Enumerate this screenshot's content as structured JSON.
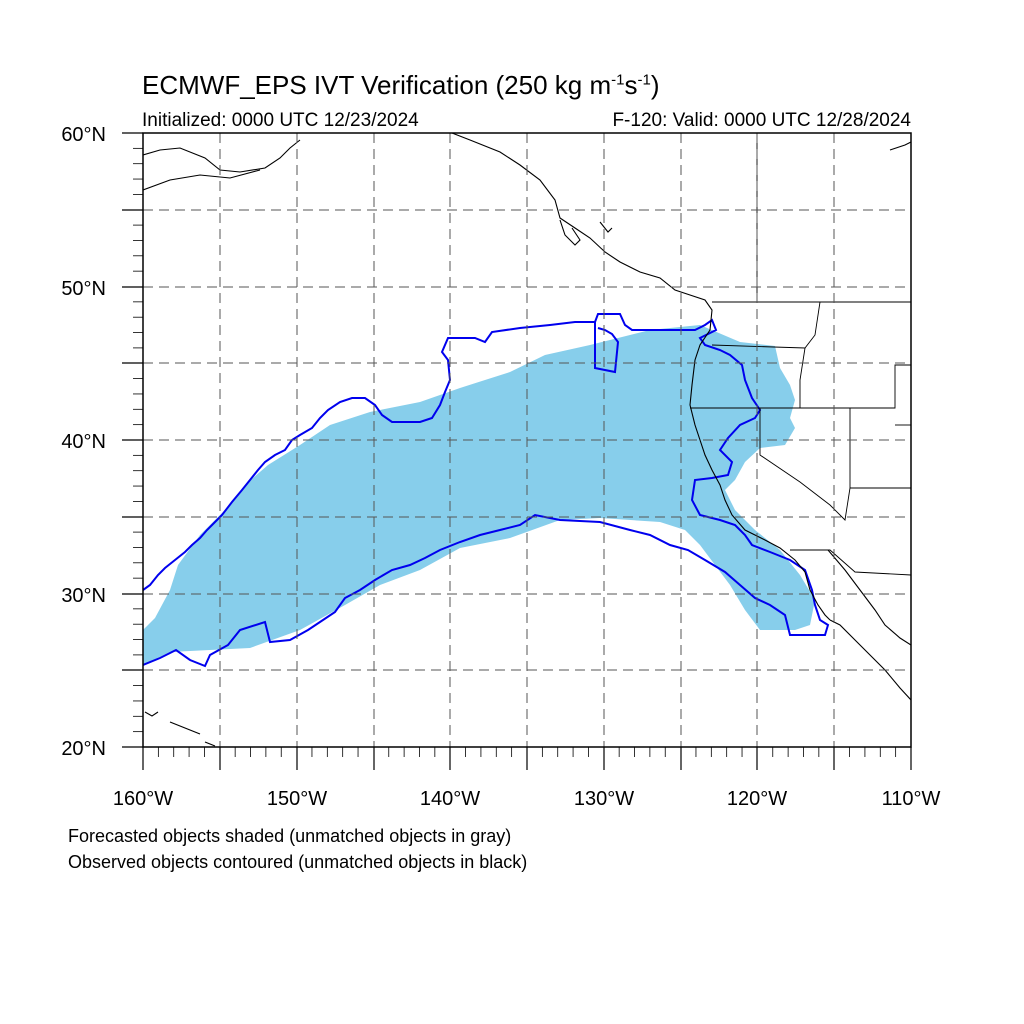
{
  "header": {
    "title": "ECMWF_EPS IVT Verification (250 kg m",
    "title_exp1": "-1",
    "title_mid": "s",
    "title_exp2": "-1",
    "title_end": ")",
    "initialized": "Initialized: 0000 UTC 12/23/2024",
    "valid": "F-120: Valid: 0000 UTC 12/28/2024"
  },
  "axes": {
    "lat_labels": [
      "60°N",
      "50°N",
      "40°N",
      "30°N",
      "20°N"
    ],
    "lon_labels": [
      "160°W",
      "150°W",
      "140°W",
      "130°W",
      "120°W",
      "110°W"
    ],
    "lat_range": [
      20,
      60
    ],
    "lon_range": [
      -160,
      -110
    ],
    "grid": "dashed, every 5 degrees"
  },
  "legend": {
    "line1": "Forecasted objects shaded (unmatched objects in gray)",
    "line2": "Observed objects contoured (unmatched objects in black)"
  },
  "colors": {
    "forecast_fill": "#87ceeb",
    "observed_contour": "#0000ee",
    "coastline": "#000000",
    "grid": "#555555"
  }
}
